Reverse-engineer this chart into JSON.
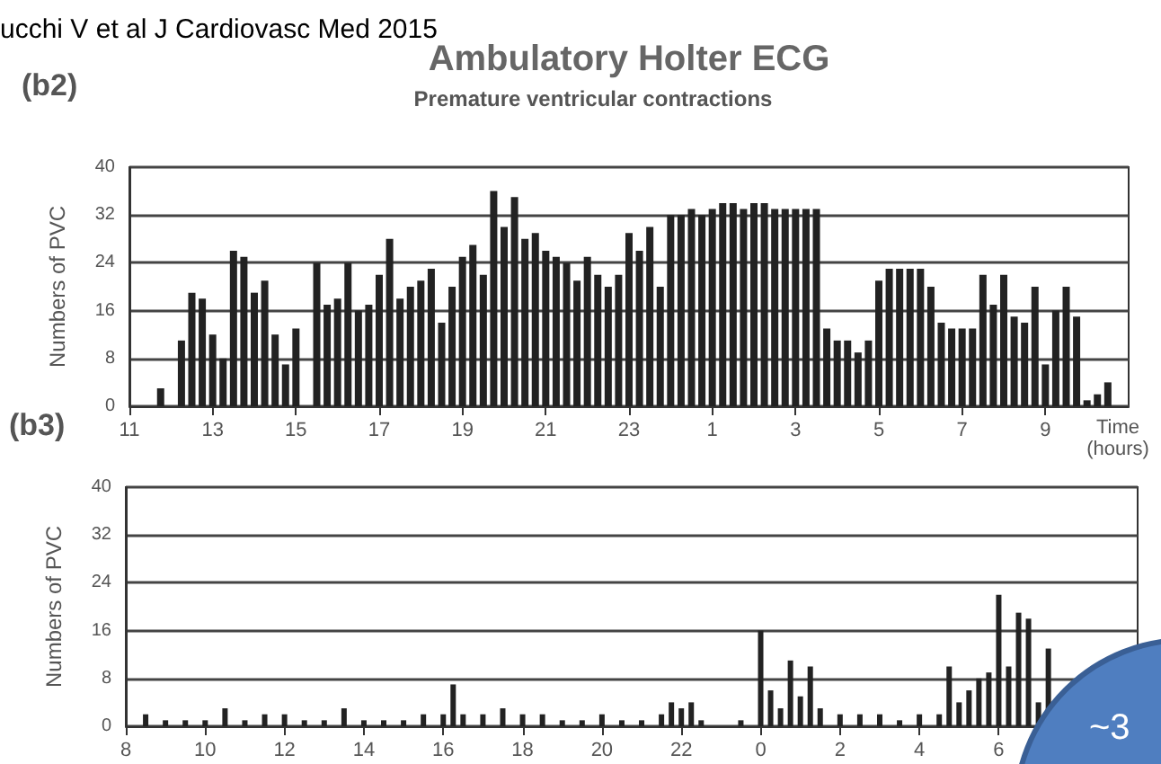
{
  "chart_data": [
    {
      "type": "bar",
      "title": "Ambulatory Holter ECG",
      "subtitle": "Premature ventricular contractions",
      "annotations": [
        "ucchi V et al J Cardiovasc Med 2015",
        "(b2)"
      ],
      "xlabel": "Time (hours)",
      "ylabel": "Numbers of PVC",
      "color": "#222222",
      "grid": "y",
      "xlim": [
        "2015-01-01T11:00",
        "2015-01-02T11:00"
      ],
      "xticks": [
        {
          "value": "2015-01-01T11:00",
          "label": "11"
        },
        {
          "value": "2015-01-01T13:00",
          "label": "13"
        },
        {
          "value": "2015-01-01T15:00",
          "label": "15"
        },
        {
          "value": "2015-01-01T17:00",
          "label": "17"
        },
        {
          "value": "2015-01-01T19:00",
          "label": "19"
        },
        {
          "value": "2015-01-01T21:00",
          "label": "21"
        },
        {
          "value": "2015-01-01T23:00",
          "label": "23"
        },
        {
          "value": "2015-01-02T01:00",
          "label": "1"
        },
        {
          "value": "2015-01-02T03:00",
          "label": "3"
        },
        {
          "value": "2015-01-02T05:00",
          "label": "5"
        },
        {
          "value": "2015-01-02T07:00",
          "label": "7"
        },
        {
          "value": "2015-01-02T09:00",
          "label": "9"
        }
      ],
      "ylim": [
        0,
        40
      ],
      "yticks": [
        0,
        8,
        16,
        24,
        32,
        40
      ],
      "x": [
        "2015-01-01T11:45",
        "2015-01-01T12:00",
        "2015-01-01T12:15",
        "2015-01-01T12:30",
        "2015-01-01T12:45",
        "2015-01-01T13:00",
        "2015-01-01T13:15",
        "2015-01-01T13:30",
        "2015-01-01T13:45",
        "2015-01-01T14:00",
        "2015-01-01T14:15",
        "2015-01-01T14:30",
        "2015-01-01T14:45",
        "2015-01-01T15:00",
        "2015-01-01T15:15",
        "2015-01-01T15:30",
        "2015-01-01T15:45",
        "2015-01-01T16:00",
        "2015-01-01T16:15",
        "2015-01-01T16:30",
        "2015-01-01T16:45",
        "2015-01-01T17:00",
        "2015-01-01T17:15",
        "2015-01-01T17:30",
        "2015-01-01T17:45",
        "2015-01-01T18:00",
        "2015-01-01T18:15",
        "2015-01-01T18:30",
        "2015-01-01T18:45",
        "2015-01-01T19:00",
        "2015-01-01T19:15",
        "2015-01-01T19:30",
        "2015-01-01T19:45",
        "2015-01-01T20:00",
        "2015-01-01T20:15",
        "2015-01-01T20:30",
        "2015-01-01T20:45",
        "2015-01-01T21:00",
        "2015-01-01T21:15",
        "2015-01-01T21:30",
        "2015-01-01T21:45",
        "2015-01-01T22:00",
        "2015-01-01T22:15",
        "2015-01-01T22:30",
        "2015-01-01T22:45",
        "2015-01-01T23:00",
        "2015-01-01T23:15",
        "2015-01-01T23:30",
        "2015-01-01T23:45",
        "2015-01-02T00:00",
        "2015-01-02T00:15",
        "2015-01-02T00:30",
        "2015-01-02T00:45",
        "2015-01-02T01:00",
        "2015-01-02T01:15",
        "2015-01-02T01:30",
        "2015-01-02T01:45",
        "2015-01-02T02:00",
        "2015-01-02T02:15",
        "2015-01-02T02:30",
        "2015-01-02T02:45",
        "2015-01-02T03:00",
        "2015-01-02T03:15",
        "2015-01-02T03:30",
        "2015-01-02T03:45",
        "2015-01-02T04:00",
        "2015-01-02T04:15",
        "2015-01-02T04:30",
        "2015-01-02T04:45",
        "2015-01-02T05:00",
        "2015-01-02T05:15",
        "2015-01-02T05:30",
        "2015-01-02T05:45",
        "2015-01-02T06:00",
        "2015-01-02T06:15",
        "2015-01-02T06:30",
        "2015-01-02T06:45",
        "2015-01-02T07:00",
        "2015-01-02T07:15",
        "2015-01-02T07:30",
        "2015-01-02T07:45",
        "2015-01-02T08:00",
        "2015-01-02T08:15",
        "2015-01-02T08:30",
        "2015-01-02T08:45",
        "2015-01-02T09:00",
        "2015-01-02T09:15",
        "2015-01-02T09:30",
        "2015-01-02T09:45",
        "2015-01-02T10:00",
        "2015-01-02T10:15",
        "2015-01-02T10:30"
      ],
      "values": [
        3,
        0,
        11,
        19,
        18,
        12,
        8,
        26,
        25,
        19,
        21,
        12,
        7,
        13,
        0,
        24,
        17,
        18,
        24,
        16,
        17,
        22,
        28,
        18,
        20,
        21,
        23,
        14,
        20,
        25,
        27,
        22,
        36,
        30,
        35,
        28,
        29,
        26,
        25,
        24,
        21,
        25,
        22,
        20,
        22,
        29,
        26,
        30,
        20,
        32,
        32,
        33,
        32,
        33,
        34,
        34,
        33,
        34,
        34,
        33,
        33,
        33,
        33,
        33,
        13,
        11,
        11,
        9,
        11,
        21,
        23,
        23,
        23,
        23,
        20,
        14,
        13,
        13,
        13,
        22,
        17,
        22,
        15,
        14,
        20,
        7,
        16,
        20,
        15,
        1,
        2,
        4
      ]
    },
    {
      "type": "bar",
      "annotations": [
        "(b3)",
        "~3"
      ],
      "ylabel": "Numbers of PVC",
      "color": "#222222",
      "grid": "y",
      "xlim": [
        "2015-01-01T08:00",
        "2015-01-02T09:30"
      ],
      "xticks": [
        {
          "value": "2015-01-01T08:00",
          "label": "8"
        },
        {
          "value": "2015-01-01T10:00",
          "label": "10"
        },
        {
          "value": "2015-01-01T12:00",
          "label": "12"
        },
        {
          "value": "2015-01-01T14:00",
          "label": "14"
        },
        {
          "value": "2015-01-01T16:00",
          "label": "16"
        },
        {
          "value": "2015-01-01T18:00",
          "label": "18"
        },
        {
          "value": "2015-01-01T20:00",
          "label": "20"
        },
        {
          "value": "2015-01-01T22:00",
          "label": "22"
        },
        {
          "value": "2015-01-02T00:00",
          "label": "0"
        },
        {
          "value": "2015-01-02T02:00",
          "label": "2"
        },
        {
          "value": "2015-01-02T04:00",
          "label": "4"
        },
        {
          "value": "2015-01-02T06:00",
          "label": "6"
        }
      ],
      "ylim": [
        0,
        40
      ],
      "yticks": [
        0,
        8,
        16,
        24,
        32,
        40
      ],
      "x": [
        "2015-01-01T08:30",
        "2015-01-01T09:00",
        "2015-01-01T09:30",
        "2015-01-01T10:00",
        "2015-01-01T10:30",
        "2015-01-01T11:00",
        "2015-01-01T11:30",
        "2015-01-01T12:00",
        "2015-01-01T12:30",
        "2015-01-01T13:00",
        "2015-01-01T13:30",
        "2015-01-01T14:00",
        "2015-01-01T14:30",
        "2015-01-01T15:00",
        "2015-01-01T15:30",
        "2015-01-01T16:00",
        "2015-01-01T16:15",
        "2015-01-01T16:30",
        "2015-01-01T17:00",
        "2015-01-01T17:30",
        "2015-01-01T18:00",
        "2015-01-01T18:30",
        "2015-01-01T19:00",
        "2015-01-01T19:30",
        "2015-01-01T20:00",
        "2015-01-01T20:30",
        "2015-01-01T21:00",
        "2015-01-01T21:30",
        "2015-01-01T21:45",
        "2015-01-01T22:00",
        "2015-01-01T22:15",
        "2015-01-01T22:30",
        "2015-01-01T23:00",
        "2015-01-01T23:30",
        "2015-01-02T00:00",
        "2015-01-02T00:15",
        "2015-01-02T00:30",
        "2015-01-02T00:45",
        "2015-01-02T01:00",
        "2015-01-02T01:15",
        "2015-01-02T01:30",
        "2015-01-02T02:00",
        "2015-01-02T02:30",
        "2015-01-02T03:00",
        "2015-01-02T03:30",
        "2015-01-02T04:00",
        "2015-01-02T04:30",
        "2015-01-02T04:45",
        "2015-01-02T05:00",
        "2015-01-02T05:15",
        "2015-01-02T05:30",
        "2015-01-02T05:45",
        "2015-01-02T06:00",
        "2015-01-02T06:15",
        "2015-01-02T06:30",
        "2015-01-02T06:45",
        "2015-01-02T07:00",
        "2015-01-02T07:15"
      ],
      "values": [
        2,
        1,
        1,
        1,
        3,
        1,
        2,
        2,
        1,
        1,
        3,
        1,
        1,
        1,
        2,
        2,
        7,
        2,
        2,
        3,
        2,
        2,
        1,
        1,
        2,
        1,
        1,
        2,
        4,
        3,
        4,
        1,
        0,
        1,
        16,
        6,
        3,
        11,
        5,
        10,
        3,
        2,
        2,
        2,
        1,
        2,
        2,
        10,
        4,
        6,
        8,
        9,
        22,
        10,
        19,
        18,
        4,
        13
      ]
    }
  ]
}
